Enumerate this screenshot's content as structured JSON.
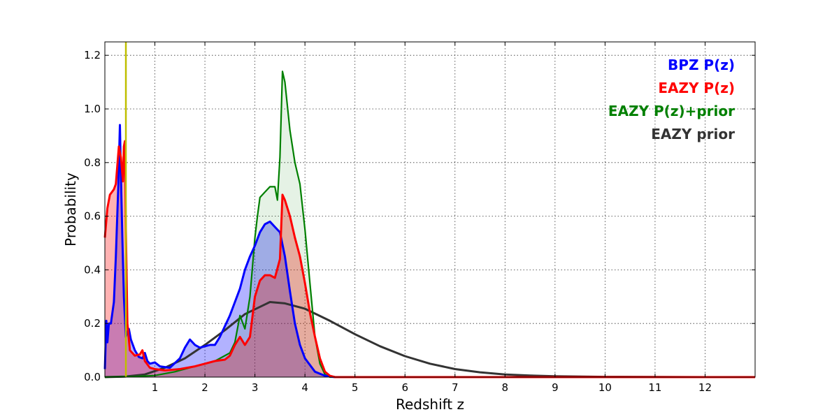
{
  "chart_data": {
    "type": "area",
    "xlabel": "Redshift z",
    "ylabel": "Probability",
    "xlim": [
      0,
      13
    ],
    "ylim": [
      0,
      1.25
    ],
    "x_ticks": [
      "1",
      "2",
      "3",
      "4",
      "5",
      "6",
      "7",
      "8",
      "9",
      "10",
      "11",
      "12"
    ],
    "y_ticks": [
      "0.0",
      "0.2",
      "0.4",
      "0.6",
      "0.8",
      "1.0",
      "1.2"
    ],
    "grid": true,
    "legend_position": "top-right",
    "vertical_line": {
      "x": 0.42,
      "color": "#bfbf00"
    },
    "series": [
      {
        "name": "EAZY prior",
        "color": "#333333",
        "fill": false,
        "points": [
          [
            0,
            0.0
          ],
          [
            0.4,
            0.002
          ],
          [
            0.8,
            0.01
          ],
          [
            1.2,
            0.035
          ],
          [
            1.6,
            0.07
          ],
          [
            2.0,
            0.12
          ],
          [
            2.4,
            0.175
          ],
          [
            2.8,
            0.235
          ],
          [
            3.3,
            0.28
          ],
          [
            3.6,
            0.275
          ],
          [
            4.0,
            0.255
          ],
          [
            4.5,
            0.21
          ],
          [
            5.0,
            0.16
          ],
          [
            5.5,
            0.115
          ],
          [
            6.0,
            0.078
          ],
          [
            6.5,
            0.05
          ],
          [
            7.0,
            0.03
          ],
          [
            7.5,
            0.018
          ],
          [
            8.0,
            0.01
          ],
          [
            8.5,
            0.006
          ],
          [
            9.0,
            0.003
          ],
          [
            10.0,
            0.001
          ],
          [
            11.0,
            0.0004
          ],
          [
            12.0,
            0.0
          ]
        ]
      },
      {
        "name": "BPZ P(z)",
        "color": "#0000ff",
        "fill": true,
        "points": [
          [
            0.0,
            0.03
          ],
          [
            0.03,
            0.21
          ],
          [
            0.05,
            0.13
          ],
          [
            0.08,
            0.2
          ],
          [
            0.12,
            0.2
          ],
          [
            0.18,
            0.28
          ],
          [
            0.22,
            0.45
          ],
          [
            0.27,
            0.72
          ],
          [
            0.3,
            0.94
          ],
          [
            0.32,
            0.76
          ],
          [
            0.35,
            0.52
          ],
          [
            0.38,
            0.3
          ],
          [
            0.42,
            0.15
          ],
          [
            0.45,
            0.17
          ],
          [
            0.48,
            0.18
          ],
          [
            0.52,
            0.14
          ],
          [
            0.6,
            0.1
          ],
          [
            0.68,
            0.075
          ],
          [
            0.75,
            0.07
          ],
          [
            0.8,
            0.09
          ],
          [
            0.85,
            0.06
          ],
          [
            0.9,
            0.05
          ],
          [
            1.0,
            0.055
          ],
          [
            1.1,
            0.04
          ],
          [
            1.3,
            0.035
          ],
          [
            1.5,
            0.07
          ],
          [
            1.6,
            0.11
          ],
          [
            1.7,
            0.14
          ],
          [
            1.8,
            0.12
          ],
          [
            1.9,
            0.11
          ],
          [
            2.1,
            0.12
          ],
          [
            2.2,
            0.12
          ],
          [
            2.3,
            0.15
          ],
          [
            2.4,
            0.19
          ],
          [
            2.5,
            0.23
          ],
          [
            2.6,
            0.28
          ],
          [
            2.7,
            0.33
          ],
          [
            2.8,
            0.4
          ],
          [
            2.9,
            0.45
          ],
          [
            3.0,
            0.49
          ],
          [
            3.1,
            0.54
          ],
          [
            3.2,
            0.57
          ],
          [
            3.3,
            0.58
          ],
          [
            3.4,
            0.56
          ],
          [
            3.5,
            0.54
          ],
          [
            3.6,
            0.45
          ],
          [
            3.7,
            0.32
          ],
          [
            3.8,
            0.2
          ],
          [
            3.9,
            0.12
          ],
          [
            4.0,
            0.07
          ],
          [
            4.2,
            0.02
          ],
          [
            4.4,
            0.005
          ],
          [
            4.6,
            0.0
          ],
          [
            13.0,
            0.0
          ]
        ]
      },
      {
        "name": "EAZY P(z)",
        "color": "#ff0000",
        "fill": true,
        "points": [
          [
            0.0,
            0.52
          ],
          [
            0.05,
            0.63
          ],
          [
            0.1,
            0.68
          ],
          [
            0.18,
            0.7
          ],
          [
            0.22,
            0.72
          ],
          [
            0.28,
            0.86
          ],
          [
            0.32,
            0.82
          ],
          [
            0.36,
            0.73
          ],
          [
            0.38,
            0.86
          ],
          [
            0.4,
            0.88
          ],
          [
            0.42,
            0.55
          ],
          [
            0.45,
            0.2
          ],
          [
            0.5,
            0.1
          ],
          [
            0.6,
            0.08
          ],
          [
            0.7,
            0.085
          ],
          [
            0.75,
            0.1
          ],
          [
            0.8,
            0.06
          ],
          [
            0.9,
            0.035
          ],
          [
            1.0,
            0.03
          ],
          [
            1.2,
            0.025
          ],
          [
            1.5,
            0.03
          ],
          [
            1.8,
            0.04
          ],
          [
            2.0,
            0.05
          ],
          [
            2.2,
            0.06
          ],
          [
            2.4,
            0.065
          ],
          [
            2.5,
            0.08
          ],
          [
            2.6,
            0.12
          ],
          [
            2.7,
            0.15
          ],
          [
            2.8,
            0.12
          ],
          [
            2.9,
            0.15
          ],
          [
            3.0,
            0.3
          ],
          [
            3.1,
            0.36
          ],
          [
            3.2,
            0.38
          ],
          [
            3.3,
            0.38
          ],
          [
            3.4,
            0.37
          ],
          [
            3.5,
            0.44
          ],
          [
            3.55,
            0.68
          ],
          [
            3.6,
            0.66
          ],
          [
            3.7,
            0.6
          ],
          [
            3.8,
            0.52
          ],
          [
            3.9,
            0.45
          ],
          [
            4.0,
            0.35
          ],
          [
            4.1,
            0.24
          ],
          [
            4.2,
            0.15
          ],
          [
            4.3,
            0.07
          ],
          [
            4.4,
            0.02
          ],
          [
            4.5,
            0.005
          ],
          [
            4.6,
            0.0
          ],
          [
            13.0,
            0.0
          ]
        ]
      },
      {
        "name": "EAZY P(z)+prior",
        "color": "#008000",
        "fill": true,
        "points": [
          [
            0.0,
            0.0
          ],
          [
            0.6,
            0.002
          ],
          [
            1.0,
            0.006
          ],
          [
            1.4,
            0.02
          ],
          [
            1.8,
            0.04
          ],
          [
            2.2,
            0.06
          ],
          [
            2.5,
            0.09
          ],
          [
            2.6,
            0.13
          ],
          [
            2.7,
            0.23
          ],
          [
            2.8,
            0.18
          ],
          [
            2.9,
            0.3
          ],
          [
            3.0,
            0.52
          ],
          [
            3.05,
            0.6
          ],
          [
            3.1,
            0.67
          ],
          [
            3.2,
            0.69
          ],
          [
            3.3,
            0.71
          ],
          [
            3.4,
            0.71
          ],
          [
            3.45,
            0.66
          ],
          [
            3.5,
            0.82
          ],
          [
            3.55,
            1.14
          ],
          [
            3.6,
            1.1
          ],
          [
            3.7,
            0.92
          ],
          [
            3.8,
            0.8
          ],
          [
            3.9,
            0.72
          ],
          [
            4.0,
            0.55
          ],
          [
            4.1,
            0.35
          ],
          [
            4.2,
            0.15
          ],
          [
            4.3,
            0.05
          ],
          [
            4.4,
            0.01
          ],
          [
            4.5,
            0.0
          ],
          [
            13.0,
            0.0
          ]
        ]
      }
    ]
  }
}
